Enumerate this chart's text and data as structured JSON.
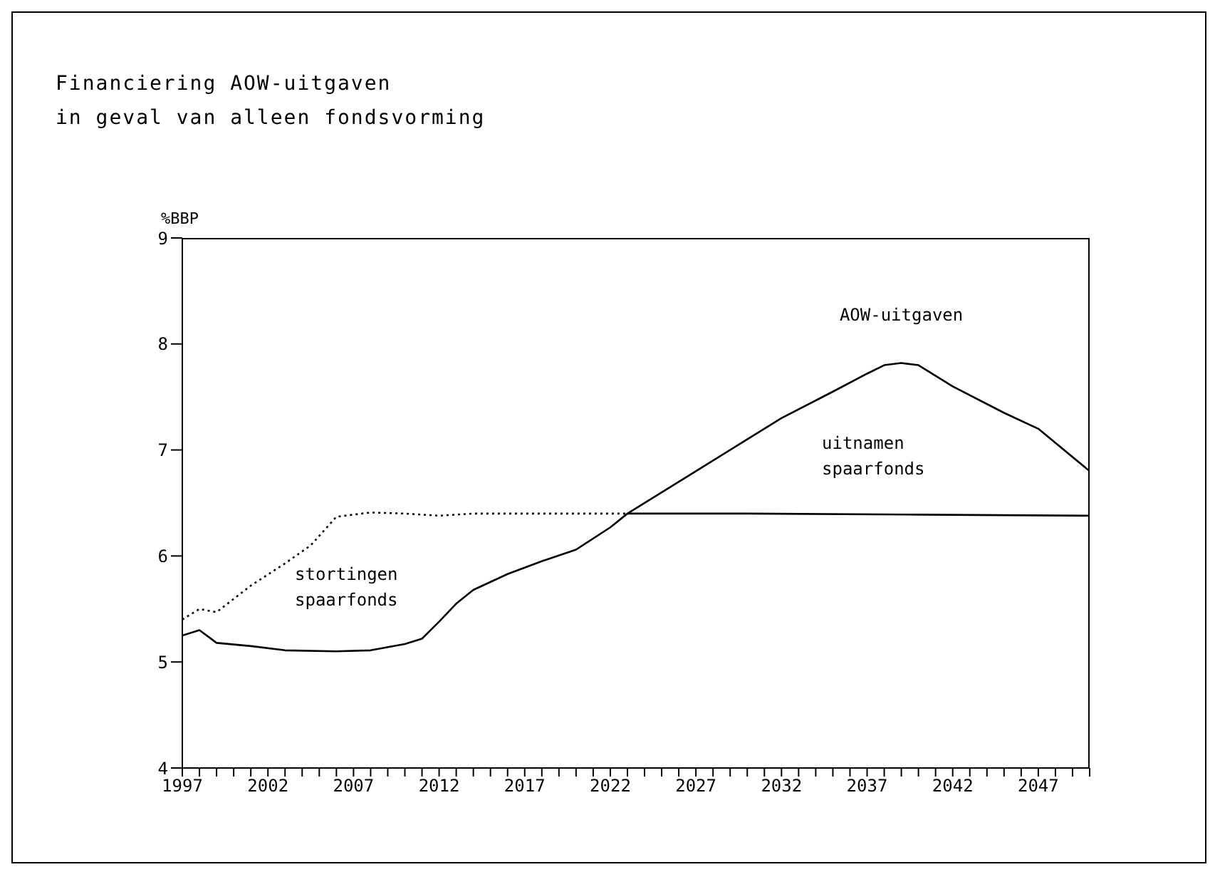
{
  "chart_data": {
    "type": "line",
    "title": "Financiering AOW-uitgaven",
    "subtitle": "in geval van alleen fondsvorming",
    "ylabel": "%BBP",
    "xlim": [
      1997,
      2050
    ],
    "ylim": [
      4,
      9
    ],
    "yticks": [
      4,
      5,
      6,
      7,
      8,
      9
    ],
    "xticks": [
      1997,
      {
        "value": 1998,
        "label": null
      },
      {
        "value": 1999,
        "label": null
      },
      {
        "value": 2000,
        "label": null
      },
      {
        "value": 2001,
        "label": null
      },
      2002,
      {
        "value": 2003,
        "label": null
      },
      {
        "value": 2004,
        "label": null
      },
      {
        "value": 2005,
        "label": null
      },
      {
        "value": 2006,
        "label": null
      },
      2007,
      {
        "value": 2008,
        "label": null
      },
      {
        "value": 2009,
        "label": null
      },
      {
        "value": 2010,
        "label": null
      },
      {
        "value": 2011,
        "label": null
      },
      2012,
      {
        "value": 2013,
        "label": null
      },
      {
        "value": 2014,
        "label": null
      },
      {
        "value": 2015,
        "label": null
      },
      {
        "value": 2016,
        "label": null
      },
      2017,
      {
        "value": 2018,
        "label": null
      },
      {
        "value": 2019,
        "label": null
      },
      {
        "value": 2020,
        "label": null
      },
      {
        "value": 2021,
        "label": null
      },
      2022,
      {
        "value": 2023,
        "label": null
      },
      {
        "value": 2024,
        "label": null
      },
      {
        "value": 2025,
        "label": null
      },
      {
        "value": 2026,
        "label": null
      },
      2027,
      {
        "value": 2028,
        "label": null
      },
      {
        "value": 2029,
        "label": null
      },
      {
        "value": 2030,
        "label": null
      },
      {
        "value": 2031,
        "label": null
      },
      2032,
      {
        "value": 2033,
        "label": null
      },
      {
        "value": 2034,
        "label": null
      },
      {
        "value": 2035,
        "label": null
      },
      {
        "value": 2036,
        "label": null
      },
      2037,
      {
        "value": 2038,
        "label": null
      },
      {
        "value": 2039,
        "label": null
      },
      {
        "value": 2040,
        "label": null
      },
      {
        "value": 2041,
        "label": null
      },
      2042,
      {
        "value": 2043,
        "label": null
      },
      {
        "value": 2044,
        "label": null
      },
      {
        "value": 2045,
        "label": null
      },
      {
        "value": 2046,
        "label": null
      },
      2047,
      {
        "value": 2048,
        "label": null
      },
      {
        "value": 2049,
        "label": null
      },
      {
        "value": 2050,
        "label": null
      }
    ],
    "marker": "none",
    "series": [
      {
        "name": "AOW-uitgaven",
        "color": "#000000",
        "line_style": "solid",
        "x": [
          1997,
          1998,
          1999,
          2001,
          2003,
          2006,
          2008,
          2010,
          2011,
          2012,
          2013,
          2014,
          2016,
          2018,
          2020,
          2022,
          2023,
          2025,
          2027,
          2030,
          2032,
          2035,
          2037,
          2038,
          2039,
          2040,
          2042,
          2045,
          2047,
          2050
        ],
        "values": [
          5.25,
          5.3,
          5.18,
          5.15,
          5.11,
          5.1,
          5.11,
          5.17,
          5.22,
          5.38,
          5.55,
          5.68,
          5.83,
          5.95,
          6.06,
          6.27,
          6.4,
          6.6,
          6.8,
          7.1,
          7.3,
          7.55,
          7.72,
          7.8,
          7.82,
          7.8,
          7.6,
          7.35,
          7.2,
          6.8
        ]
      },
      {
        "color": "#000000",
        "line_style": "dotted",
        "x": [
          1997,
          1998,
          1999,
          2001,
          2003,
          2004.5,
          2006,
          2008,
          2010,
          2012,
          2014,
          2017,
          2020,
          2023
        ],
        "values": [
          5.4,
          5.5,
          5.47,
          5.72,
          5.93,
          6.1,
          6.37,
          6.41,
          6.4,
          6.38,
          6.4,
          6.4,
          6.4,
          6.4
        ]
      },
      {
        "color": "#000000",
        "line_style": "solid",
        "x": [
          2023,
          2030,
          2040,
          2050
        ],
        "values": [
          6.4,
          6.4,
          6.39,
          6.38
        ]
      }
    ],
    "annotations": [
      "stortingen spaarfonds",
      "uitnamen spaarfonds"
    ]
  }
}
